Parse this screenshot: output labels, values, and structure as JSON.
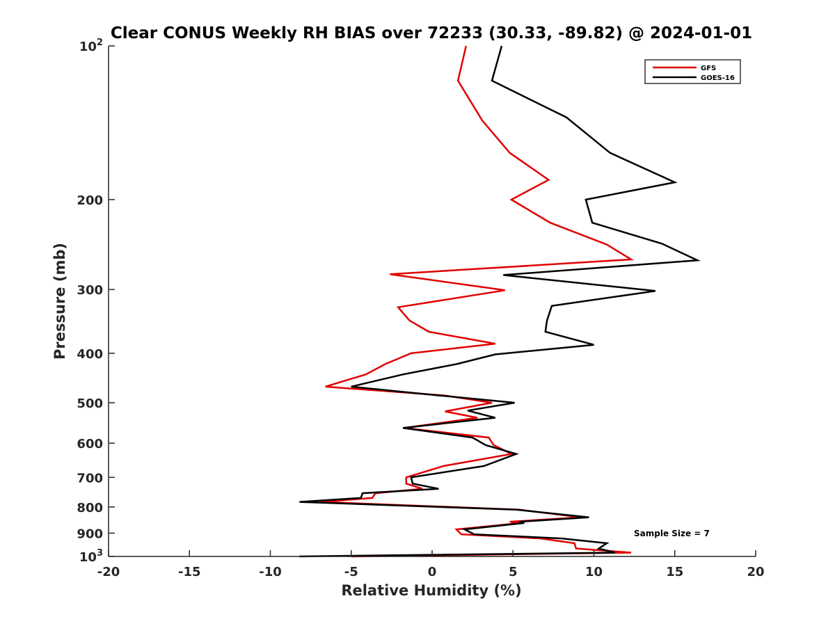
{
  "chart_data": {
    "type": "line",
    "title": "Clear CONUS Weekly RH BIAS over 72233 (30.33, -89.82) @ 2024-01-01",
    "xlabel": "Relative Humidity (%)",
    "ylabel": "Pressure (mb)",
    "xlim": [
      -20,
      20
    ],
    "ylim": [
      100,
      1000
    ],
    "yscale": "log",
    "y_reversed": true,
    "x_ticks": [
      -20,
      -15,
      -10,
      -5,
      0,
      5,
      10,
      15,
      20
    ],
    "x_tick_labels": [
      "-20",
      "-15",
      "-10",
      "-5",
      "0",
      "5",
      "10",
      "15",
      "20"
    ],
    "y_ticks": [
      {
        "value": 100,
        "base": "10",
        "exp": "2"
      },
      {
        "value": 200,
        "label": "200"
      },
      {
        "value": 300,
        "label": "300"
      },
      {
        "value": 400,
        "label": "400"
      },
      {
        "value": 500,
        "label": "500"
      },
      {
        "value": 600,
        "label": "600"
      },
      {
        "value": 700,
        "label": "700"
      },
      {
        "value": 800,
        "label": "800"
      },
      {
        "value": 900,
        "label": "900"
      },
      {
        "value": 1000,
        "base": "10",
        "exp": "3"
      }
    ],
    "grid": false,
    "legend_position": "top-right",
    "annotation": "Sample Size = 7",
    "series": [
      {
        "name": "GFS",
        "color": "#e00000",
        "points": [
          [
            2.1,
            100
          ],
          [
            1.6,
            117
          ],
          [
            3.1,
            140
          ],
          [
            4.8,
            162
          ],
          [
            7.2,
            183
          ],
          [
            4.9,
            200
          ],
          [
            7.3,
            222
          ],
          [
            10.8,
            245
          ],
          [
            12.3,
            262
          ],
          [
            -2.6,
            280
          ],
          [
            4.5,
            301
          ],
          [
            -2.1,
            325
          ],
          [
            -1.4,
            345
          ],
          [
            -0.2,
            363
          ],
          [
            3.9,
            383
          ],
          [
            -1.3,
            400
          ],
          [
            -2.9,
            420
          ],
          [
            -4.1,
            440
          ],
          [
            -6.6,
            465
          ],
          [
            0.8,
            484
          ],
          [
            3.7,
            500
          ],
          [
            0.8,
            520
          ],
          [
            2.8,
            535
          ],
          [
            -1.7,
            560
          ],
          [
            3.5,
            585
          ],
          [
            3.8,
            605
          ],
          [
            4.9,
            630
          ],
          [
            0.7,
            665
          ],
          [
            -1.6,
            700
          ],
          [
            -1.6,
            720
          ],
          [
            -0.6,
            737
          ],
          [
            -3.5,
            752
          ],
          [
            -3.7,
            768
          ],
          [
            -6.9,
            782
          ],
          [
            5.4,
            810
          ],
          [
            9.2,
            838
          ],
          [
            4.8,
            855
          ],
          [
            5.5,
            860
          ],
          [
            1.5,
            885
          ],
          [
            1.8,
            905
          ],
          [
            6.7,
            922
          ],
          [
            8.8,
            942
          ],
          [
            8.9,
            965
          ],
          [
            12.3,
            983
          ],
          [
            -5.0,
            1000
          ]
        ]
      },
      {
        "name": "GOES-16",
        "color": "#000000",
        "points": [
          [
            4.3,
            100
          ],
          [
            3.7,
            117
          ],
          [
            8.3,
            138
          ],
          [
            11.0,
            162
          ],
          [
            15.0,
            185
          ],
          [
            9.5,
            200
          ],
          [
            9.9,
            222
          ],
          [
            14.2,
            244
          ],
          [
            16.4,
            263
          ],
          [
            4.4,
            281
          ],
          [
            13.8,
            302
          ],
          [
            7.4,
            323
          ],
          [
            7.1,
            345
          ],
          [
            7.0,
            363
          ],
          [
            10.0,
            385
          ],
          [
            3.9,
            402
          ],
          [
            1.5,
            420
          ],
          [
            -1.8,
            440
          ],
          [
            -5.0,
            465
          ],
          [
            0.5,
            484
          ],
          [
            5.1,
            500
          ],
          [
            2.2,
            518
          ],
          [
            3.9,
            535
          ],
          [
            -1.8,
            560
          ],
          [
            2.5,
            585
          ],
          [
            3.3,
            605
          ],
          [
            5.2,
            630
          ],
          [
            3.2,
            665
          ],
          [
            -1.3,
            700
          ],
          [
            -1.2,
            720
          ],
          [
            0.4,
            737
          ],
          [
            -4.3,
            752
          ],
          [
            -4.4,
            768
          ],
          [
            -8.2,
            782
          ],
          [
            5.2,
            810
          ],
          [
            9.7,
            838
          ],
          [
            5.4,
            855
          ],
          [
            5.7,
            860
          ],
          [
            2.0,
            885
          ],
          [
            2.6,
            905
          ],
          [
            8.0,
            922
          ],
          [
            10.8,
            942
          ],
          [
            10.3,
            965
          ],
          [
            11.3,
            983
          ],
          [
            -8.2,
            1000
          ]
        ]
      }
    ]
  }
}
